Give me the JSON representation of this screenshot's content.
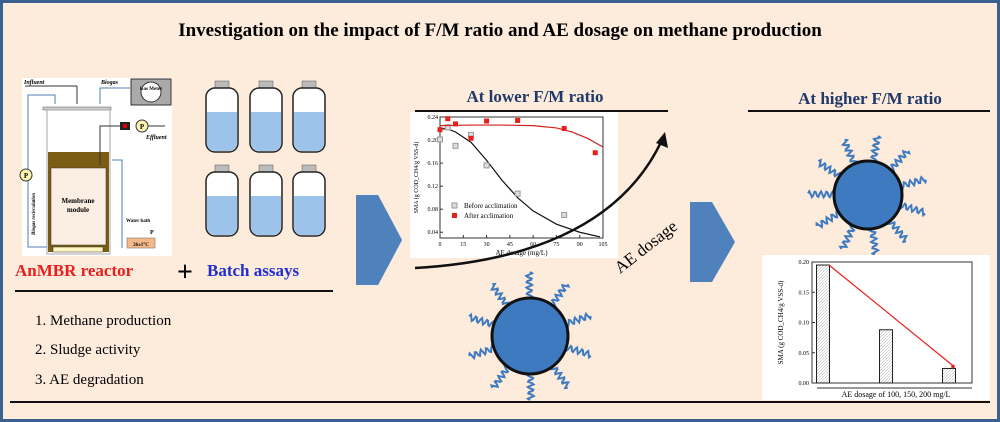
{
  "title": "Investigation on the impact of F/M ratio and AE dosage on methane production",
  "colors": {
    "background": "#fdebdc",
    "frame": "#3a6090",
    "arrow": "#4f81bd",
    "particle": "#3d7ac0",
    "red": "#e8201c",
    "blue": "#1f2fd0"
  },
  "reactor": {
    "influent": "Influent",
    "biogas": "Biogas",
    "gas_meter": "Gas Meter",
    "effluent": "Effluent",
    "membrane": "Membrane",
    "module": "module",
    "water_bath": "Water bath",
    "temp": "26±1°C",
    "recirculation": "Biogas recirculation",
    "pump": "P"
  },
  "left": {
    "anmbr": "AnMBR reactor",
    "plus": "+",
    "batch": "Batch assays",
    "list": [
      "1. Methane production",
      "2. Sludge activity",
      "3. AE degradation"
    ]
  },
  "middle": {
    "heading": "At lower F/M ratio",
    "arrow_label": "AE dosage"
  },
  "right": {
    "heading": "At higher F/M ratio"
  },
  "chart_data": [
    {
      "type": "scatter",
      "xlabel": "AE dosage (mg/L)",
      "ylabel": "SMA (g COD_CH4/g VSS-d)",
      "xlim": [
        0,
        105
      ],
      "ylim": [
        0.03,
        0.24
      ],
      "xticks": [
        0,
        15,
        30,
        45,
        60,
        75,
        90,
        105
      ],
      "yticks": [
        0.04,
        0.08,
        0.12,
        0.16,
        0.2,
        0.24
      ],
      "legend_placement": "bottom-left",
      "series": [
        {
          "name": "Before acclimation",
          "color": "#999999",
          "x": [
            0,
            5,
            10,
            20,
            30,
            50,
            80
          ],
          "y": [
            0.201,
            0.222,
            0.19,
            0.209,
            0.156,
            0.107,
            0.07
          ],
          "fit": {
            "x": [
              0,
              5,
              10,
              20,
              30,
              40,
              50,
              60,
              75,
              90,
              103
            ],
            "y": [
              0.22,
              0.219,
              0.214,
              0.196,
              0.165,
              0.13,
              0.1,
              0.077,
              0.054,
              0.04,
              0.032
            ]
          }
        },
        {
          "name": "After   acclimation",
          "color": "#e8201c",
          "x": [
            0,
            5,
            10,
            20,
            30,
            50,
            80,
            100
          ],
          "y": [
            0.218,
            0.237,
            0.228,
            0.203,
            0.233,
            0.234,
            0.22,
            0.178
          ],
          "fit": {
            "x": [
              0,
              20,
              40,
              60,
              75,
              85,
              95,
              105
            ],
            "y": [
              0.225,
              0.226,
              0.226,
              0.225,
              0.221,
              0.214,
              0.203,
              0.188
            ]
          }
        }
      ]
    },
    {
      "type": "bar",
      "xlabel": "AE dosage of 100, 150, 200 mg/L",
      "ylabel": "SMA (g COD_CH4/g VSS-d)",
      "categories": [
        "100",
        "150",
        "200"
      ],
      "values": [
        0.195,
        0.088,
        0.024
      ],
      "ylim": [
        0,
        0.2
      ],
      "yticks": [
        0.0,
        0.05,
        0.1,
        0.15,
        0.2
      ]
    }
  ]
}
